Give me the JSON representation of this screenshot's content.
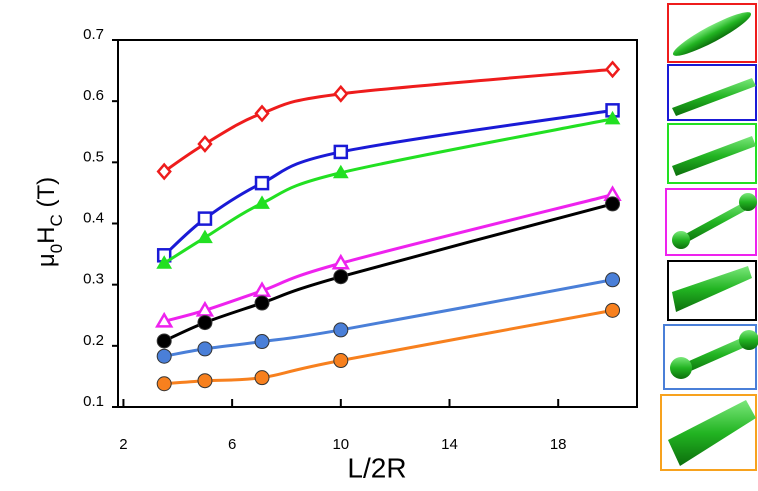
{
  "chart_data": {
    "type": "line",
    "xlabel": "L/2R",
    "ylabel": [
      "μ",
      "0",
      "H",
      "C",
      " (T)"
    ],
    "x": [
      3.5,
      5,
      7.1,
      10,
      20
    ],
    "xlim": [
      1.8,
      20.9
    ],
    "xticks": [
      2,
      6,
      10,
      14,
      18
    ],
    "ylim": [
      0.1,
      0.7
    ],
    "yticks": [
      0.1,
      0.2,
      0.3,
      0.4,
      0.5,
      0.6,
      0.7
    ],
    "series": [
      {
        "color": "#ee1c1c",
        "marker": "diamond",
        "filled": false,
        "values": [
          0.485,
          0.53,
          0.58,
          0.612,
          0.652
        ]
      },
      {
        "color": "#1a1ad6",
        "marker": "square",
        "filled": false,
        "values": [
          0.348,
          0.408,
          0.466,
          0.517,
          0.585
        ]
      },
      {
        "color": "#22e022",
        "marker": "triangle",
        "filled": true,
        "values": [
          0.335,
          0.377,
          0.433,
          0.483,
          0.571
        ]
      },
      {
        "color": "#ee22ee",
        "marker": "triangle",
        "filled": false,
        "values": [
          0.24,
          0.258,
          0.29,
          0.335,
          0.447
        ]
      },
      {
        "color": "#000000",
        "marker": "circle",
        "filled": true,
        "values": [
          0.208,
          0.238,
          0.27,
          0.313,
          0.432
        ]
      },
      {
        "color": "#4a7fd8",
        "marker": "circle",
        "filled": true,
        "values": [
          0.183,
          0.195,
          0.207,
          0.226,
          0.308
        ]
      },
      {
        "color": "#f7801e",
        "marker": "circle",
        "filled": true,
        "values": [
          0.138,
          0.143,
          0.148,
          0.176,
          0.258
        ]
      }
    ]
  }
}
